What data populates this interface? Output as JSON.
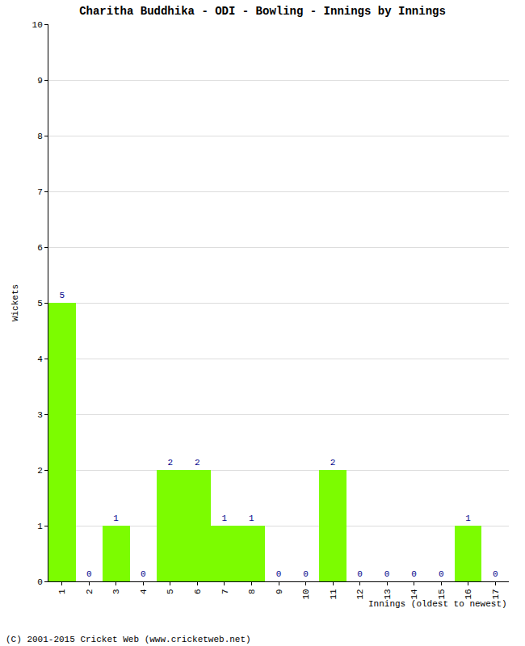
{
  "chart_data": {
    "type": "bar",
    "title": "Charitha Buddhika - ODI - Bowling - Innings by Innings",
    "x_label": "Innings (oldest to newest)",
    "y_label": "Wickets",
    "categories": [
      "1",
      "2",
      "3",
      "4",
      "5",
      "6",
      "7",
      "8",
      "9",
      "10",
      "11",
      "12",
      "13",
      "14",
      "15",
      "16",
      "17"
    ],
    "values": [
      5,
      0,
      1,
      0,
      2,
      2,
      1,
      1,
      0,
      0,
      2,
      0,
      0,
      0,
      0,
      1,
      0
    ],
    "color": "#7cfc00",
    "ylim": [
      0,
      10
    ],
    "yticks": [
      0,
      1,
      2,
      3,
      4,
      5,
      6,
      7,
      8,
      9,
      10
    ],
    "grid": true,
    "data_labels": true,
    "annotations": [
      "(C) 2001-2015 Cricket Web (www.cricketweb.net)"
    ]
  }
}
